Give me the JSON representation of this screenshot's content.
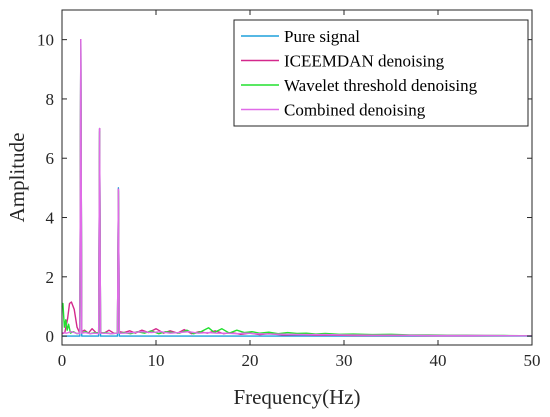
{
  "chart_data": {
    "type": "line",
    "title": "",
    "xlabel": "Frequency(Hz)",
    "ylabel": "Amplitude",
    "xlim": [
      0,
      50
    ],
    "ylim": [
      -0.3,
      11
    ],
    "xticks": [
      0,
      10,
      20,
      30,
      40,
      50
    ],
    "yticks": [
      0,
      2,
      4,
      6,
      8,
      10
    ],
    "grid": false,
    "legend_position": "top-right",
    "series": [
      {
        "name": "Pure signal",
        "color": "#1ea0dc",
        "x": [
          0,
          1.5,
          1.9,
          2,
          2.1,
          2.5,
          3.5,
          3.9,
          4,
          4.1,
          4.5,
          5.5,
          5.9,
          6,
          6.1,
          6.5,
          10,
          20,
          30,
          40,
          50
        ],
        "y": [
          0,
          0,
          0,
          10,
          0,
          0,
          0,
          0,
          7,
          0,
          0,
          0,
          0,
          5,
          0,
          0,
          0,
          0,
          0,
          0,
          0
        ]
      },
      {
        "name": "ICEEMDAN denoising",
        "color": "#d4288c",
        "x": [
          0,
          0.3,
          0.6,
          0.8,
          1.0,
          1.3,
          1.6,
          1.9,
          2,
          2.1,
          2.4,
          2.8,
          3.2,
          3.6,
          3.9,
          4,
          4.1,
          4.5,
          5.0,
          5.5,
          5.9,
          6,
          6.1,
          6.6,
          7.2,
          7.8,
          8.5,
          9.2,
          10,
          10.8,
          11.5,
          12.3,
          13.0,
          13.8,
          14.6,
          15.5,
          16.3,
          17.2,
          18.0,
          19.0,
          20.0,
          21.0,
          22.0,
          23.5,
          25,
          27,
          29,
          31,
          33,
          35,
          37,
          40,
          43,
          46,
          50
        ],
        "y": [
          0.08,
          0.12,
          0.6,
          1.1,
          1.15,
          0.9,
          0.3,
          0.1,
          10.0,
          0.15,
          0.2,
          0.1,
          0.25,
          0.12,
          0.1,
          7.0,
          0.12,
          0.1,
          0.2,
          0.1,
          0.1,
          4.95,
          0.15,
          0.12,
          0.18,
          0.1,
          0.2,
          0.12,
          0.25,
          0.1,
          0.18,
          0.1,
          0.22,
          0.08,
          0.15,
          0.1,
          0.18,
          0.08,
          0.12,
          0.06,
          0.1,
          0.05,
          0.08,
          0.04,
          0.05,
          0.03,
          0.03,
          0.02,
          0.02,
          0.02,
          0.02,
          0.01,
          0.01,
          0.01,
          0.01
        ]
      },
      {
        "name": "Wavelet threshold denoising",
        "color": "#22e02f",
        "x": [
          0,
          0.1,
          0.25,
          0.4,
          0.55,
          0.7,
          0.9,
          1.2,
          1.6,
          1.9,
          2,
          2.1,
          2.5,
          3.0,
          3.5,
          3.9,
          4,
          4.1,
          4.6,
          5.2,
          5.9,
          6,
          6.1,
          6.6,
          7.3,
          8.0,
          8.8,
          9.5,
          10.3,
          11.0,
          11.8,
          12.5,
          13.3,
          14.0,
          14.8,
          15.6,
          16.2,
          17.0,
          17.8,
          18.6,
          19.4,
          20.2,
          21.0,
          22.0,
          23.0,
          24.0,
          25.0,
          26.0,
          27.0,
          28.0,
          29.5,
          31.0,
          33.0,
          35.0,
          37.0,
          39.0,
          41.0,
          43.0,
          45.0,
          47.0,
          50.0
        ],
        "y": [
          1.0,
          1.1,
          0.3,
          0.55,
          0.2,
          0.4,
          0.1,
          0.15,
          0.08,
          0.1,
          9.9,
          0.1,
          0.15,
          0.08,
          0.12,
          0.1,
          6.9,
          0.1,
          0.12,
          0.08,
          0.1,
          4.9,
          0.1,
          0.12,
          0.08,
          0.15,
          0.1,
          0.18,
          0.08,
          0.15,
          0.12,
          0.1,
          0.2,
          0.08,
          0.15,
          0.28,
          0.12,
          0.25,
          0.1,
          0.2,
          0.12,
          0.15,
          0.1,
          0.13,
          0.08,
          0.12,
          0.09,
          0.1,
          0.07,
          0.09,
          0.06,
          0.07,
          0.05,
          0.06,
          0.04,
          0.04,
          0.03,
          0.03,
          0.02,
          0.02,
          0.01
        ]
      },
      {
        "name": "Combined denoising",
        "color": "#e06be8",
        "x": [
          0,
          0.5,
          1.0,
          1.5,
          1.9,
          2,
          2.1,
          2.5,
          3.0,
          3.5,
          3.9,
          4,
          4.1,
          4.6,
          5.2,
          5.9,
          6,
          6.1,
          6.6,
          7.5,
          8.5,
          9.5,
          10.5,
          11.5,
          12.5,
          13.5,
          14.5,
          15.5,
          16.5,
          17.5,
          18.5,
          19.5,
          20.5,
          22,
          24,
          26,
          28,
          30,
          33,
          36,
          40,
          45,
          50
        ],
        "y": [
          0.12,
          0.1,
          0.15,
          0.1,
          0.08,
          10.0,
          0.1,
          0.12,
          0.08,
          0.1,
          0.08,
          7.0,
          0.1,
          0.1,
          0.08,
          0.1,
          4.95,
          0.1,
          0.1,
          0.12,
          0.15,
          0.12,
          0.15,
          0.1,
          0.12,
          0.15,
          0.1,
          0.12,
          0.1,
          0.1,
          0.08,
          0.1,
          0.08,
          0.07,
          0.06,
          0.05,
          0.05,
          0.04,
          0.03,
          0.03,
          0.02,
          0.02,
          0.01
        ]
      }
    ]
  }
}
